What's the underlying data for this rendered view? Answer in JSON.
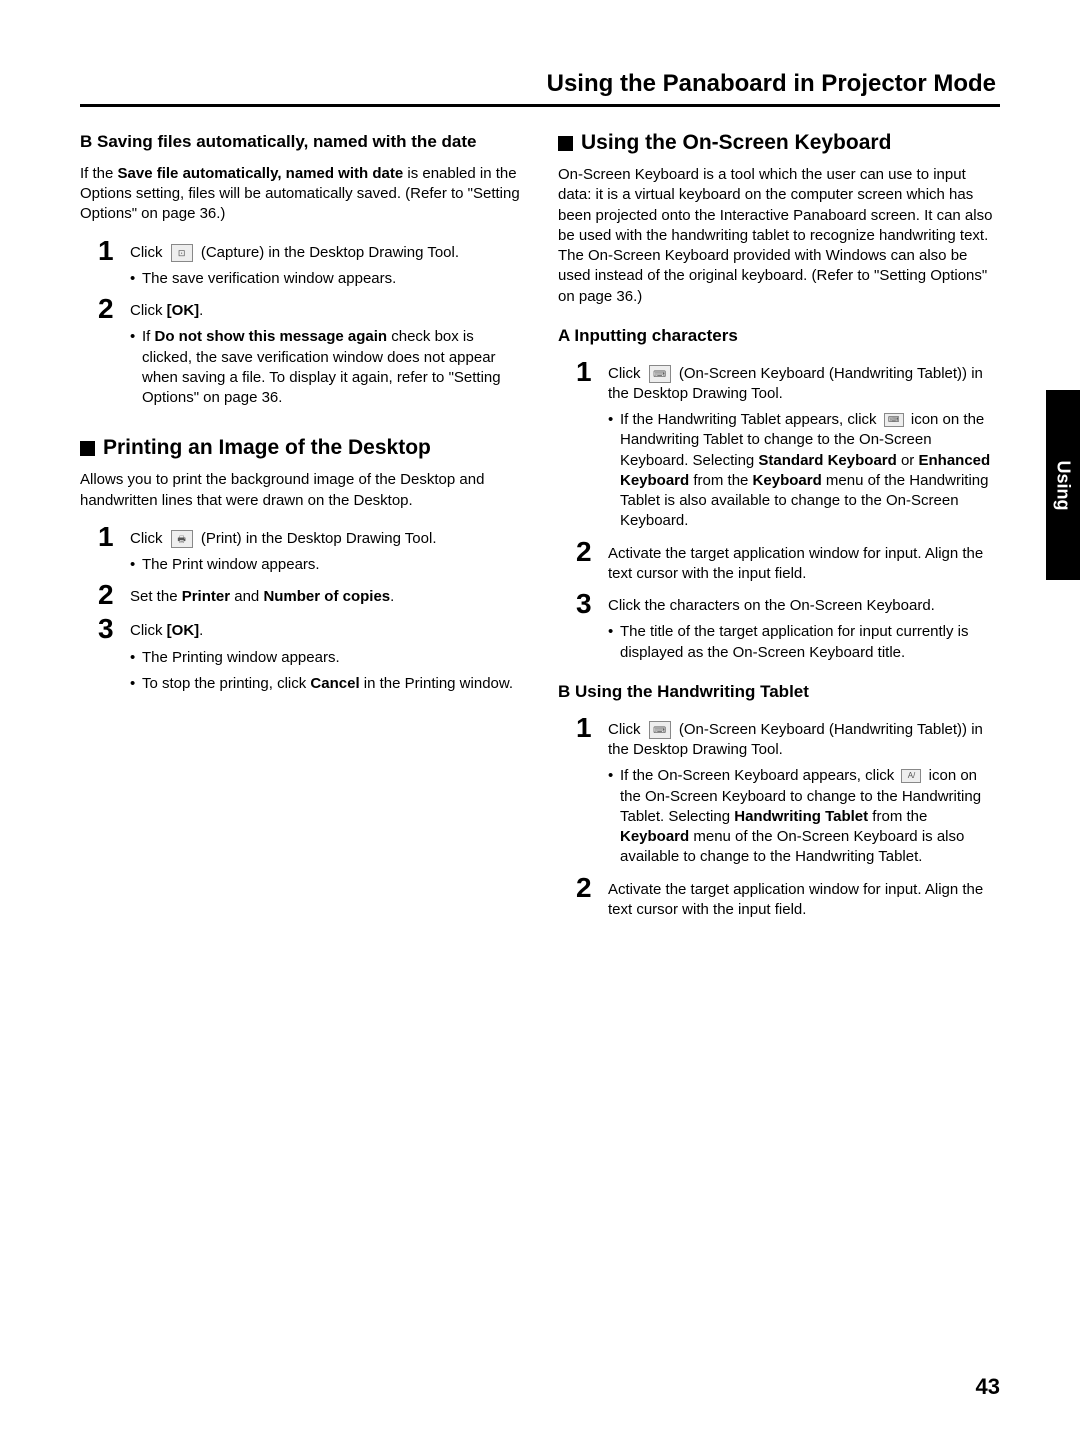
{
  "page": {
    "header_title": "Using the Panaboard in Projector Mode",
    "side_tab": "Using",
    "page_number": "43"
  },
  "left": {
    "secB_title": "B Saving files automatically, named with the date",
    "secB_intro_pre": "If the ",
    "secB_intro_bold": "Save file automatically, named with date",
    "secB_intro_post": " is enabled in the Options setting, files will be automatically saved. (Refer to \"Setting Options\" on page 36.)",
    "secB_step1_a": "Click ",
    "secB_step1_b": " (Capture) in the Desktop Drawing Tool.",
    "secB_step1_bul": "The save verification window appears.",
    "secB_step2_a": "Click ",
    "secB_step2_ok": "[OK]",
    "secB_step2_b": ".",
    "secB_step2_bul_a": "If ",
    "secB_step2_bul_bold": "Do not show this message again",
    "secB_step2_bul_b": " check box is clicked, the save verification window does not appear when saving a file. To display it again, refer to \"Setting Options\" on page 36.",
    "print_title": "Printing an Image of the Desktop",
    "print_intro": "Allows you to print the background image of the Desktop and handwritten lines that were drawn on the Desktop.",
    "print_step1_a": "Click ",
    "print_step1_b": " (Print) in the Desktop Drawing Tool.",
    "print_step1_bul": "The Print window appears.",
    "print_step2_a": "Set the ",
    "print_step2_b1": "Printer",
    "print_step2_mid": " and ",
    "print_step2_b2": "Number of copies",
    "print_step2_end": ".",
    "print_step3_a": "Click ",
    "print_step3_ok": "[OK]",
    "print_step3_b": ".",
    "print_step3_bul1": "The Printing window appears.",
    "print_step3_bul2_a": "To stop the printing, click ",
    "print_step3_bul2_b": "Cancel",
    "print_step3_bul2_c": " in the Printing window."
  },
  "right": {
    "osk_title": "Using the On-Screen Keyboard",
    "osk_intro": "On-Screen Keyboard is a tool which the user can use to input data: it is a virtual keyboard on the computer screen which has been projected onto the Interactive Panaboard screen. It can also be used with the handwriting tablet to recognize handwriting text. The On-Screen Keyboard provided with Windows can also be used instead of the original keyboard. (Refer to \"Setting Options\" on page 36.)",
    "A_title": "A Inputting characters",
    "A_step1_a": "Click ",
    "A_step1_b": " (On-Screen Keyboard (Handwriting Tablet)) in the Desktop Drawing Tool.",
    "A_step1_bul_a": "If the Handwriting Tablet appears, click ",
    "A_step1_bul_b": " icon on the Handwriting Tablet to change to the On-Screen Keyboard. Selecting ",
    "A_step1_bul_b1": "Standard Keyboard",
    "A_step1_bul_mid1": " or ",
    "A_step1_bul_b2": "Enhanced Keyboard",
    "A_step1_bul_mid2": " from the ",
    "A_step1_bul_b3": "Keyboard",
    "A_step1_bul_c": " menu of the Handwriting Tablet is also available to change to the On-Screen Keyboard.",
    "A_step2": "Activate the target application window for input. Align the text cursor with the input field.",
    "A_step3": "Click the characters on the On-Screen Keyboard.",
    "A_step3_bul": "The title of the target application for input currently is displayed as the On-Screen Keyboard title.",
    "B_title": "B Using the Handwriting Tablet",
    "B_step1_a": "Click ",
    "B_step1_b": " (On-Screen Keyboard (Handwriting Tablet)) in the Desktop Drawing Tool.",
    "B_step1_bul_a": "If the On-Screen Keyboard appears, click ",
    "B_step1_bul_b": " icon on the On-Screen Keyboard to change to the Handwriting Tablet. Selecting ",
    "B_step1_bul_b1": "Handwriting Tablet",
    "B_step1_bul_mid": " from the ",
    "B_step1_bul_b2": "Keyboard",
    "B_step1_bul_c": " menu of the On-Screen Keyboard is also available to change to the Handwriting Tablet.",
    "B_step2": "Activate the target application window for input. Align the text cursor with the input field."
  }
}
